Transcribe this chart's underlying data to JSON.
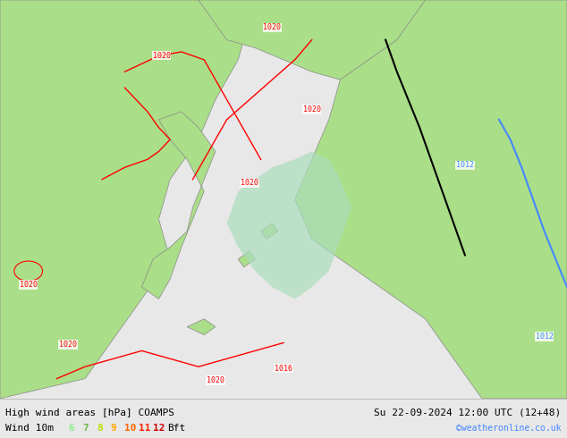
{
  "title_left": "High wind areas [hPa] COAMPS",
  "title_right": "Su 22-09-2024 12:00 UTC (12+48)",
  "subtitle_left": "Wind 10m",
  "legend_labels": [
    "6",
    "7",
    "8",
    "9",
    "10",
    "11",
    "12",
    "Bft"
  ],
  "legend_colors": [
    "#90EE90",
    "#66CC44",
    "#FFFF00",
    "#FFA500",
    "#FF6600",
    "#FF0000",
    "#CC0000",
    "#000000"
  ],
  "legend_bft_color": "#000000",
  "credit": "©weatheronline.co.uk",
  "credit_color": "#4488FF",
  "background_color": "#E8E8E8",
  "land_color": "#AADE88",
  "sea_color": "#FFFFFF",
  "fig_width": 6.34,
  "fig_height": 4.9,
  "dpi": 100
}
